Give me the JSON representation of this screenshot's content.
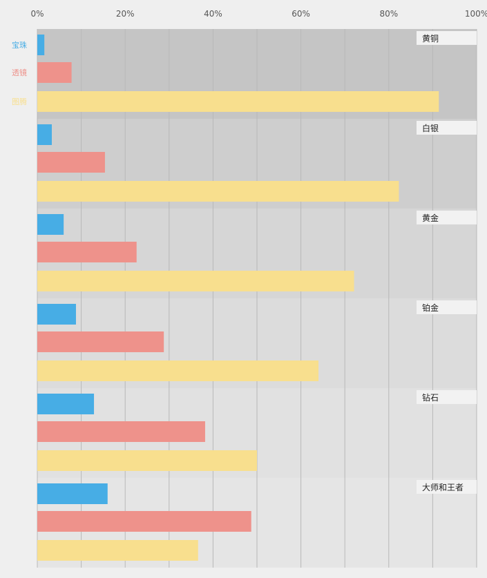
{
  "chart_data": {
    "type": "bar",
    "orientation": "horizontal",
    "grid": true,
    "legend_placement": "left",
    "xlim": [
      0,
      100
    ],
    "x_ticks": [
      "0%",
      "20%",
      "40%",
      "60%",
      "80%",
      "100%"
    ],
    "tick_values": [
      0,
      20,
      40,
      60,
      80,
      100
    ],
    "x_unit": "%",
    "categories": [
      "黄铜",
      "白银",
      "黄金",
      "铂金",
      "钻石",
      "大师和王者"
    ],
    "series": [
      {
        "name": "宝珠",
        "color": "#47ade5",
        "values": [
          1.6,
          3.3,
          6.0,
          8.8,
          12.9,
          16.0
        ]
      },
      {
        "name": "透镜",
        "color": "#ee928b",
        "values": [
          7.8,
          15.4,
          22.6,
          28.8,
          38.2,
          48.7
        ]
      },
      {
        "name": "图腾",
        "color": "#f8df8e",
        "values": [
          91.4,
          82.3,
          72.1,
          64.0,
          50.0,
          36.6
        ]
      }
    ],
    "band_colors": [
      "#c5c5c5",
      "#cecece",
      "#d6d6d6",
      "#dcdcdc",
      "#e1e1e1",
      "#e5e5e5"
    ]
  }
}
